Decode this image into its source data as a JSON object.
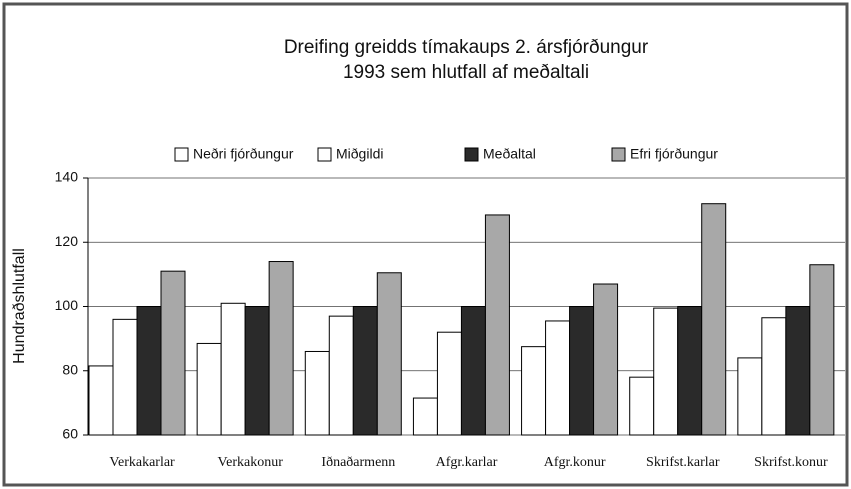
{
  "chart_data": {
    "type": "bar",
    "title": [
      "Dreifing greidds tímakaups 2. ársfjórðungur",
      "1993 sem hlutfall af meðaltali"
    ],
    "y_label": "Hundraðshlutfall",
    "categories": [
      "Verkakarlar",
      "Verkakonur",
      "Iðnaðarmenn",
      "Afgr.karlar",
      "Afgr.konur",
      "Skrifst.karlar",
      "Skrifst.konur"
    ],
    "series": [
      {
        "name": "Neðri fjórðungur",
        "color": "#ffffff",
        "values": [
          81.5,
          88.5,
          86,
          71.5,
          87.5,
          78,
          84
        ]
      },
      {
        "name": "Miðgildi",
        "color": "#ffffff",
        "values": [
          96,
          101,
          97,
          92,
          95.5,
          99.5,
          96.5
        ]
      },
      {
        "name": "Meðaltal",
        "color": "#2a2a2a",
        "values": [
          100,
          100,
          100,
          100,
          100,
          100,
          100
        ]
      },
      {
        "name": "Efri fjórðungur",
        "color": "#a8a8a8",
        "values": [
          111,
          114,
          110.5,
          128.5,
          107,
          132,
          113
        ]
      }
    ],
    "ylim": [
      60,
      140
    ],
    "yticks": [
      60,
      80,
      100,
      120,
      140
    ],
    "grid": true
  }
}
